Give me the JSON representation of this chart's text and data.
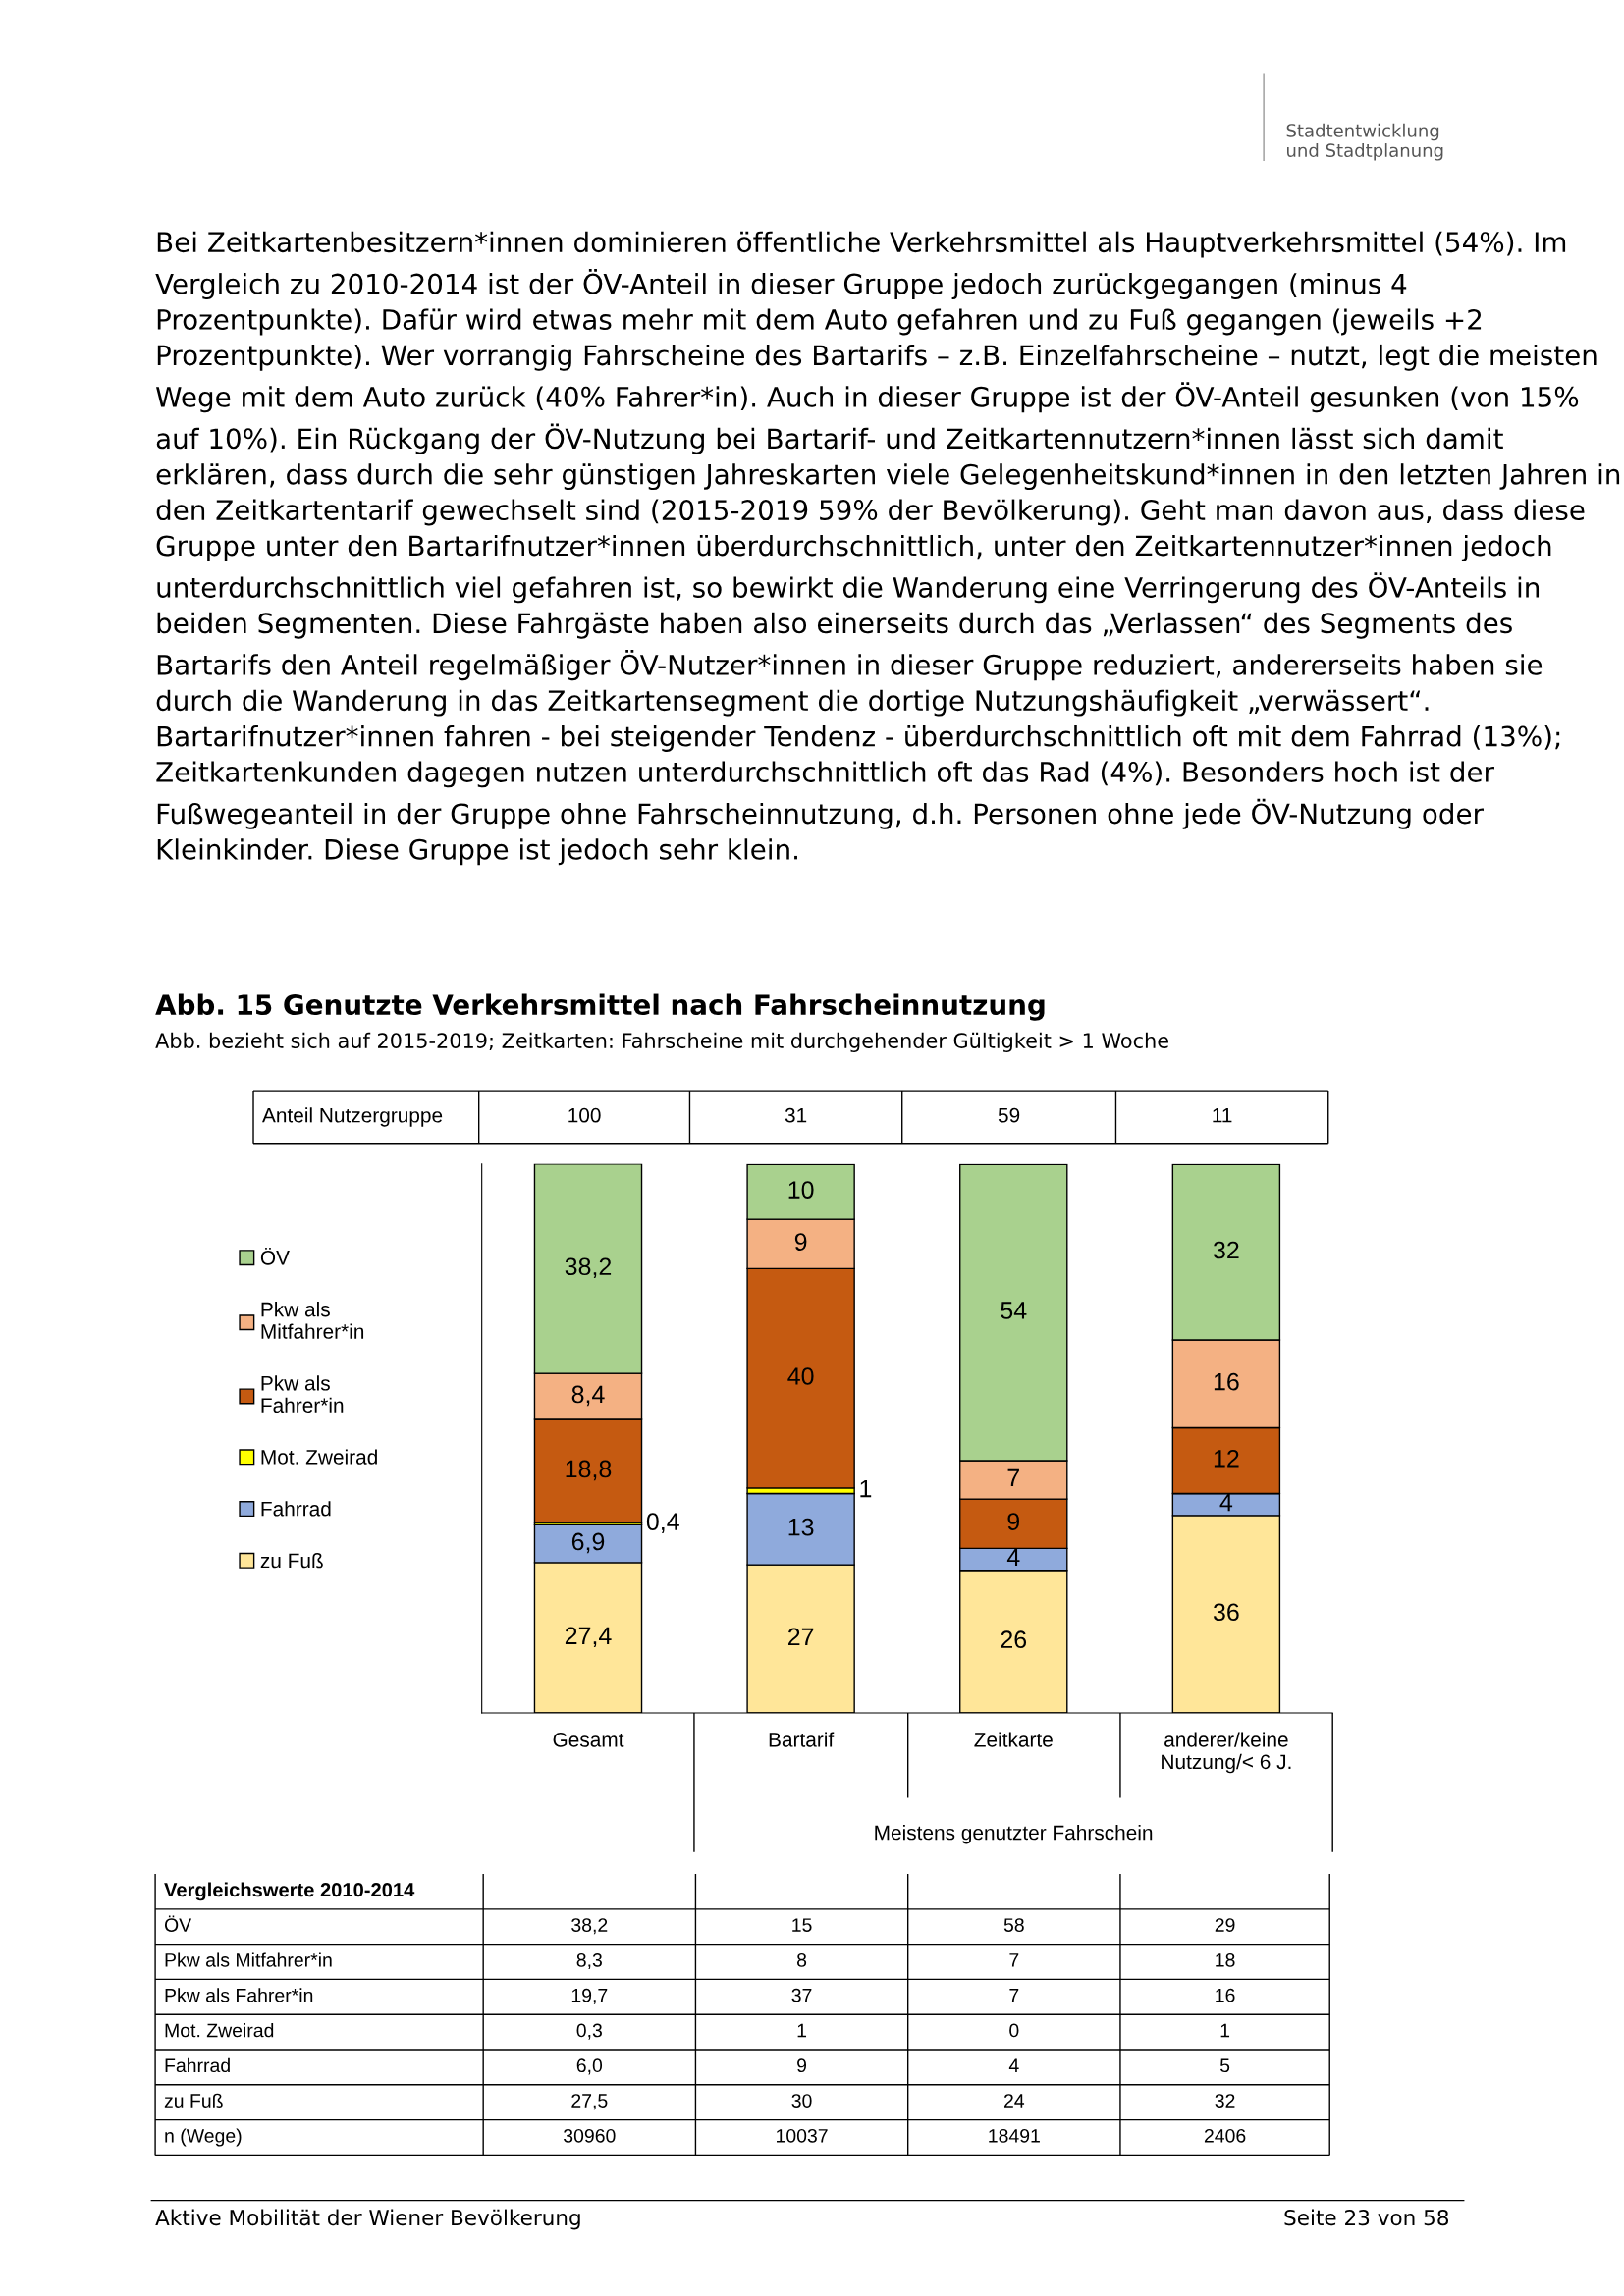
{
  "chart_data": {
    "type": "bar",
    "stacked": true,
    "title": "Abb. 15 Genutzte Verkehrsmittel nach Fahrscheinnutzung",
    "subtitle": "Abb. bezieht sich auf 2015-2019; Zeitkarten: Fahrscheine mit durchgehender Gültigkeit > 1 Woche",
    "categories": [
      "Gesamt",
      "Bartarif",
      "Zeitkarte",
      "anderer/keine\nNutzung/< 6 J."
    ],
    "series": [
      {
        "name": "zu Fuß",
        "color": "#ffe699",
        "values": [
          27.4,
          27,
          26,
          36
        ],
        "value_labels": [
          "27,4",
          "27",
          "26",
          "36"
        ]
      },
      {
        "name": "Fahrrad",
        "color": "#8faadc",
        "values": [
          6.9,
          13,
          4,
          4
        ],
        "value_labels": [
          "6,9",
          "13",
          "4",
          "4"
        ]
      },
      {
        "name": "Mot. Zweirad",
        "color": "#ffff00",
        "values": [
          0.4,
          1,
          0,
          0
        ],
        "value_labels": [
          "0,4",
          "1",
          null,
          null
        ]
      },
      {
        "name": "Pkw als Fahrer*in",
        "color": "#c55a11",
        "values": [
          18.8,
          40,
          9,
          12
        ],
        "value_labels": [
          "18,8",
          "40",
          "9",
          "12"
        ]
      },
      {
        "name": "Pkw als Mitfahrer*in",
        "color": "#f4b183",
        "values": [
          8.4,
          9,
          7,
          16
        ],
        "value_labels": [
          "8,4",
          "9",
          "7",
          "16"
        ]
      },
      {
        "name": "ÖV",
        "color": "#a9d18e",
        "values": [
          38.2,
          10,
          54,
          32
        ],
        "value_labels": [
          "38,2",
          "10",
          "54",
          "32"
        ]
      }
    ],
    "legend": "left",
    "grid": false,
    "tick_labels": "x",
    "annotations": [
      "Bei Zeitkartenbesitzern*innen dominieren öffentliche Verkehrsmittel als Hauptverkehrsmittel (54%). Im Vergleich zu 2010-2014 ist der ÖV-Anteil in dieser Gruppe jedoch zurückgegangen (minus 4 Prozentpunkte). Dafür wird etwas mehr mit dem Auto gefahren und zu Fuß gegangen (jeweils +2 Prozentpunkte). Wer vorrangig Fahrscheine des Bartarifs – z.B. Einzelfahrscheine – nutzt, legt die meisten Wege mit dem Auto zurück (40% Fahrer*in). Auch in dieser Gruppe ist der ÖV-Anteil gesunken (von 15% auf 10%). Ein Rückgang der ÖV-Nutzung bei Bartarif- und Zeitkartennutzern*innen lässt sich damit erklären, dass durch die sehr günstigen Jahreskarten viele Gelegenheitskund*innen in den letzten Jahren in den Zeitkartentarif gewechselt sind (2015-2019 59% der Bevölkerung). Geht man davon aus, dass diese Gruppe unter den Bartarifnutzer*innen überdurchschnittlich, unter den Zeitkartennutzer*innen jedoch unterdurchschnittlich viel gefahren ist, so bewirkt die Wanderung eine Verringerung des ÖV-Anteils in beiden Segmenten. Diese Fahrgäste haben also einerseits durch das „Verlassen“ des Segments des Bartarifs den Anteil regelmäßiger ÖV-Nutzer*innen in dieser Gruppe reduziert, andererseits haben sie durch die Wanderung in das Zeitkartensegment die dortige Nutzungshäufigkeit „verwässert“. Bartarifnutzer*innen fahren - bei steigender Tendenz - überdurchschnittlich oft mit dem Fahrrad (13%); Zeitkartenkunden dagegen nutzen unterdurchschnittlich oft das Rad (4%). Besonders hoch ist der Fußwegeanteil in der Gruppe ohne Fahrscheinnutzung, d.h. Personen ohne jede ÖV-Nutzung oder Kleinkinder. Diese Gruppe ist jedoch sehr klein.",
      "Anteil Nutzergruppe",
      "100",
      "31",
      "59",
      "11",
      "Meistens genutzter Fahrschein",
      "Vergleichswerte 2010-2014",
      "ÖV",
      "38,2",
      "15",
      "58",
      "29",
      "Pkw als Mitfahrer*in",
      "8,3",
      "8",
      "7",
      "18",
      "Pkw als Fahrer*in",
      "19,7",
      "37",
      "7",
      "16",
      "Mot. Zweirad",
      "0,3",
      "1",
      "0",
      "1",
      "Fahrrad",
      "6,0",
      "9",
      "4",
      "5",
      "zu Fuß",
      "27,5",
      "30",
      "24",
      "32",
      "n (Wege)",
      "30960",
      "10037",
      "18491",
      "2406",
      "Aktive Mobilität der Wiener Bevölkerung",
      "Seite 23 von 58",
      "Stadtentwicklung\nund Stadtplanung"
    ]
  }
}
